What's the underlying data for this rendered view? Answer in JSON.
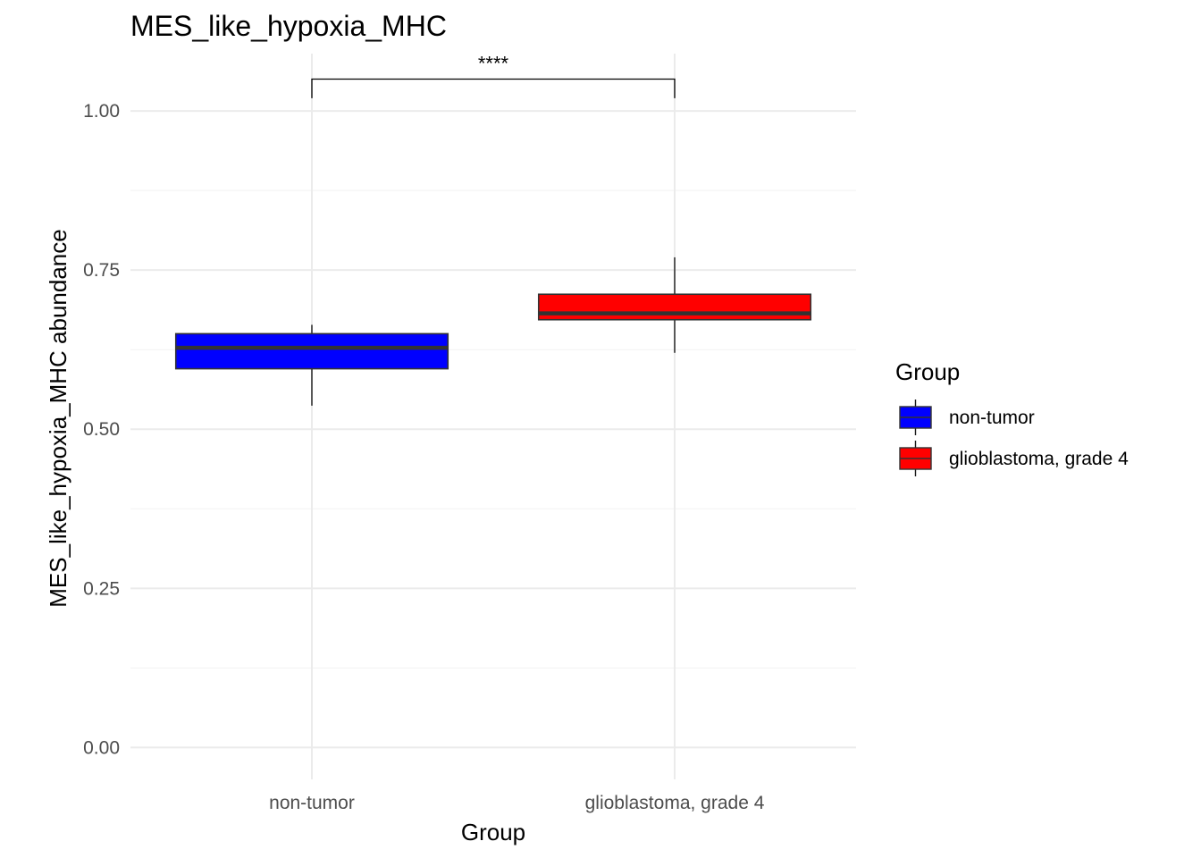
{
  "chart_data": {
    "type": "boxplot",
    "title": "MES_like_hypoxia_MHC",
    "xlabel": "Group",
    "ylabel": "MES_like_hypoxia_MHC abundance",
    "ylim": [
      -0.05,
      1.09
    ],
    "yticks": [
      0.0,
      0.25,
      0.5,
      0.75,
      1.0
    ],
    "ytick_labels": [
      "0.00",
      "0.25",
      "0.50",
      "0.75",
      "1.00"
    ],
    "grid": true,
    "categories": [
      "non-tumor",
      "glioblastoma, grade 4"
    ],
    "series": [
      {
        "name": "non-tumor",
        "color": "#0000ff",
        "whisker_low": 0.537,
        "q1": 0.595,
        "median": 0.628,
        "q3": 0.65,
        "whisker_high": 0.664
      },
      {
        "name": "glioblastoma, grade 4",
        "color": "#ff0000",
        "whisker_low": 0.62,
        "q1": 0.672,
        "median": 0.682,
        "q3": 0.712,
        "whisker_high": 0.77
      }
    ],
    "significance": {
      "label": "****",
      "between": [
        0,
        1
      ],
      "y": 1.05,
      "tick_bottom": 1.02
    },
    "legend": {
      "title": "Group",
      "position": "right",
      "entries": [
        "non-tumor",
        "glioblastoma, grade 4"
      ]
    }
  }
}
